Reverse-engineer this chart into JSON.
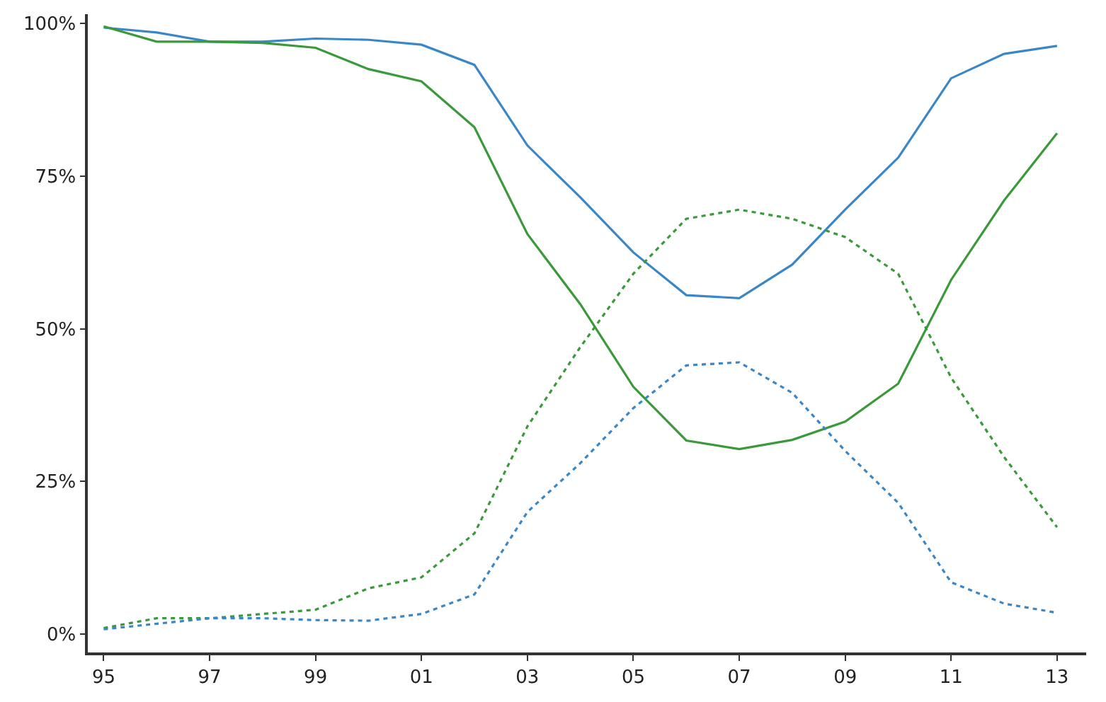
{
  "chart_data": {
    "type": "line",
    "x": [
      1995,
      1996,
      1997,
      1998,
      1999,
      2000,
      2001,
      2002,
      2003,
      2004,
      2005,
      2006,
      2007,
      2008,
      2009,
      2010,
      2011,
      2012,
      2013
    ],
    "series": [
      {
        "color": "#3a87c8",
        "line_style": "solid",
        "values": [
          99.3,
          98.5,
          97,
          97,
          97.5,
          97.3,
          96.5,
          93.2,
          80,
          71.5,
          62.5,
          55.5,
          55,
          60.5,
          69.5,
          78,
          91,
          95,
          96.3
        ]
      },
      {
        "color": "#3a9a3a",
        "line_style": "solid",
        "values": [
          99.5,
          97,
          97,
          96.8,
          96,
          92.5,
          90.5,
          83,
          65.5,
          54,
          40.5,
          31.7,
          30.3,
          31.8,
          34.8,
          41,
          58,
          71,
          82
        ]
      },
      {
        "color": "#3a9a3a",
        "line_style": "dotted",
        "values": [
          1,
          2.6,
          2.6,
          3.3,
          4,
          7.5,
          9.3,
          16.5,
          34,
          47,
          59,
          68,
          69.5,
          68,
          65,
          59,
          42,
          29,
          17.5
        ]
      },
      {
        "color": "#3a87c8",
        "line_style": "dotted",
        "values": [
          0.8,
          1.7,
          2.6,
          2.6,
          2.3,
          2.2,
          3.3,
          6.5,
          20,
          28,
          37,
          44,
          44.5,
          39.5,
          30,
          21.5,
          8.5,
          5,
          3.5
        ]
      }
    ],
    "xlim": [
      1994.7,
      2013.55
    ],
    "xticks": [
      {
        "value": 1995,
        "label": "95"
      },
      {
        "value": 1997,
        "label": "97"
      },
      {
        "value": 1999,
        "label": "99"
      },
      {
        "value": 2001,
        "label": "01"
      },
      {
        "value": 2003,
        "label": "03"
      },
      {
        "value": 2005,
        "label": "05"
      },
      {
        "value": 2007,
        "label": "07"
      },
      {
        "value": 2009,
        "label": "09"
      },
      {
        "value": 2011,
        "label": "11"
      },
      {
        "value": 2013,
        "label": "13"
      }
    ],
    "ylim": [
      -3,
      101.5
    ],
    "yticks": [
      {
        "value": 0,
        "label": "0%"
      },
      {
        "value": 25,
        "label": "25%"
      },
      {
        "value": 50,
        "label": "50%"
      },
      {
        "value": 75,
        "label": "75%"
      },
      {
        "value": 100,
        "label": "100%"
      }
    ],
    "marker": "none"
  }
}
